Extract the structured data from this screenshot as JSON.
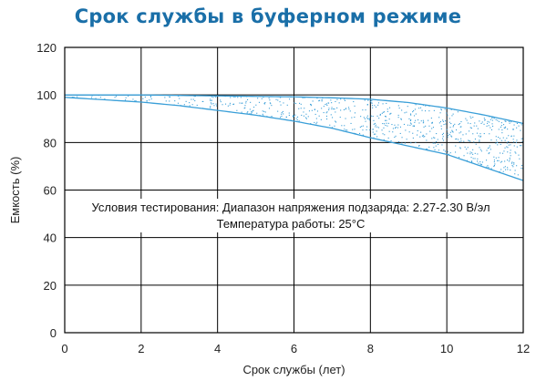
{
  "chart_data": {
    "type": "area",
    "title": "Срок службы в буферном режиме",
    "xlabel": "Срок службы (лет)",
    "ylabel": "Емкость (%)",
    "xlim": [
      0,
      12
    ],
    "ylim": [
      0,
      120
    ],
    "x_ticks": [
      0,
      2,
      4,
      6,
      8,
      10,
      12
    ],
    "y_ticks": [
      0,
      20,
      40,
      60,
      80,
      100,
      120
    ],
    "grid": true,
    "series": [
      {
        "x": [
          0,
          1,
          2,
          3,
          4,
          5,
          6,
          7,
          8,
          9,
          10,
          11,
          12
        ],
        "y": [
          100,
          100,
          100,
          99.8,
          99.6,
          99.4,
          99.2,
          98.8,
          98.2,
          96.8,
          94.5,
          91.5,
          88
        ]
      },
      {
        "x": [
          0,
          1,
          2,
          3,
          4,
          5,
          6,
          7,
          8,
          9,
          10,
          11,
          12
        ],
        "y": [
          99,
          98,
          97,
          95.5,
          93.5,
          91.5,
          89,
          86,
          82,
          78.5,
          75,
          69.5,
          64
        ]
      }
    ],
    "annotations": [
      "Условия тестирования: Диапазон напряжения подзаряда: 2.27-2.30 В/эл",
      "Температура работы: 25°C"
    ],
    "colors": {
      "curve": "#3a9fd8",
      "band_dots": "#3a9fd8",
      "title": "#1a6fa8",
      "grid": "#000000"
    }
  }
}
